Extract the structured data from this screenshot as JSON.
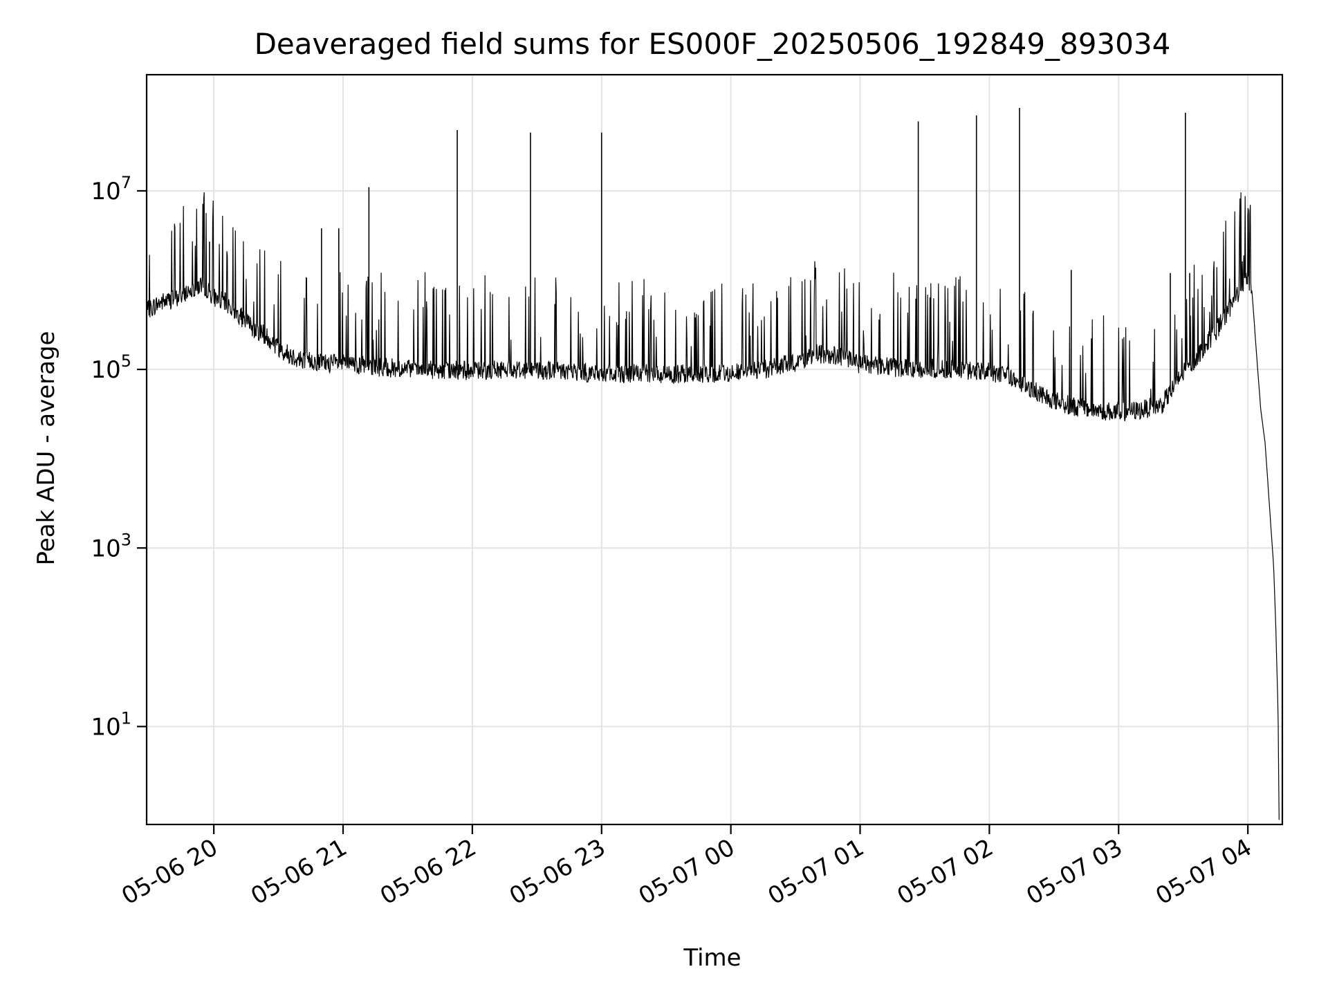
{
  "chart_data": {
    "type": "line",
    "title": "Deaveraged field sums for ES000F_20250506_192849_893034",
    "xlabel": "Time",
    "ylabel": "Peak ADU - average",
    "yscale": "log",
    "grid": true,
    "line_color": "#000000",
    "xlim": [
      "2025-05-06 19:28:49",
      "2025-05-07 04:16:00"
    ],
    "ylim": [
      0.8,
      200000000
    ],
    "x_ticks": [
      {
        "value": "2025-05-06 20:00",
        "label": "05-06 20"
      },
      {
        "value": "2025-05-06 21:00",
        "label": "05-06 21"
      },
      {
        "value": "2025-05-06 22:00",
        "label": "05-06 22"
      },
      {
        "value": "2025-05-06 23:00",
        "label": "05-06 23"
      },
      {
        "value": "2025-05-07 00:00",
        "label": "05-07 00"
      },
      {
        "value": "2025-05-07 01:00",
        "label": "05-07 01"
      },
      {
        "value": "2025-05-07 02:00",
        "label": "05-07 02"
      },
      {
        "value": "2025-05-07 03:00",
        "label": "05-07 03"
      },
      {
        "value": "2025-05-07 04:00",
        "label": "05-07 04"
      }
    ],
    "y_ticks": [
      {
        "value": 10,
        "base": "10",
        "exp": "1"
      },
      {
        "value": 1000,
        "base": "10",
        "exp": "3"
      },
      {
        "value": 100000,
        "base": "10",
        "exp": "5"
      },
      {
        "value": 10000000,
        "base": "10",
        "exp": "7"
      }
    ],
    "series": [
      {
        "points": [
          [
            "2025-05-06 19:28:49",
            450000
          ],
          [
            "2025-05-06 19:35",
            560000
          ],
          [
            "2025-05-06 19:42",
            620000
          ],
          [
            "2025-05-06 19:50",
            800000
          ],
          [
            "2025-05-06 19:55",
            900000
          ],
          [
            "2025-05-06 20:00",
            650000
          ],
          [
            "2025-05-06 20:06",
            550000
          ],
          [
            "2025-05-06 20:12",
            400000
          ],
          [
            "2025-05-06 20:18",
            300000
          ],
          [
            "2025-05-06 20:25",
            230000
          ],
          [
            "2025-05-06 20:32",
            160000
          ],
          [
            "2025-05-06 20:40",
            130000
          ],
          [
            "2025-05-06 20:50",
            120000
          ],
          [
            "2025-05-06 21:00",
            115000
          ],
          [
            "2025-05-06 21:10",
            110000
          ],
          [
            "2025-05-06 21:20",
            105000
          ],
          [
            "2025-05-06 21:30",
            100000
          ],
          [
            "2025-05-06 21:40",
            100000
          ],
          [
            "2025-05-06 21:50",
            98000
          ],
          [
            "2025-05-06 22:00",
            97000
          ],
          [
            "2025-05-06 22:15",
            100000
          ],
          [
            "2025-05-06 22:30",
            100000
          ],
          [
            "2025-05-06 22:45",
            95000
          ],
          [
            "2025-05-06 23:00",
            90000
          ],
          [
            "2025-05-06 23:15",
            90000
          ],
          [
            "2025-05-06 23:30",
            88000
          ],
          [
            "2025-05-06 23:45",
            90000
          ],
          [
            "2025-05-07 00:00",
            92000
          ],
          [
            "2025-05-07 00:15",
            100000
          ],
          [
            "2025-05-07 00:30",
            120000
          ],
          [
            "2025-05-07 00:40",
            150000
          ],
          [
            "2025-05-07 00:50",
            140000
          ],
          [
            "2025-05-07 01:00",
            115000
          ],
          [
            "2025-05-07 01:15",
            105000
          ],
          [
            "2025-05-07 01:30",
            102000
          ],
          [
            "2025-05-07 01:45",
            100000
          ],
          [
            "2025-05-07 02:00",
            95000
          ],
          [
            "2025-05-07 02:10",
            80000
          ],
          [
            "2025-05-07 02:20",
            60000
          ],
          [
            "2025-05-07 02:30",
            45000
          ],
          [
            "2025-05-07 02:40",
            38000
          ],
          [
            "2025-05-07 02:50",
            35000
          ],
          [
            "2025-05-07 03:00",
            33000
          ],
          [
            "2025-05-07 03:10",
            35000
          ],
          [
            "2025-05-07 03:20",
            40000
          ],
          [
            "2025-05-07 03:30",
            90000
          ],
          [
            "2025-05-07 03:40",
            180000
          ],
          [
            "2025-05-07 03:50",
            400000
          ],
          [
            "2025-05-07 03:55",
            700000
          ],
          [
            "2025-05-07 04:00",
            1100000
          ],
          [
            "2025-05-07 04:02",
            700000
          ],
          [
            "2025-05-07 04:04",
            150000
          ],
          [
            "2025-05-07 04:06",
            35000
          ],
          [
            "2025-05-07 04:08",
            15000
          ],
          [
            "2025-05-07 04:10",
            3000
          ],
          [
            "2025-05-07 04:12",
            600
          ],
          [
            "2025-05-07 04:13",
            120
          ],
          [
            "2025-05-07 04:14",
            15
          ],
          [
            "2025-05-07 04:14:30",
            0.9
          ]
        ]
      }
    ],
    "spikes": [
      [
        "2025-05-06 21:12",
        11000000
      ],
      [
        "2025-05-06 21:53",
        48000000
      ],
      [
        "2025-05-06 22:27",
        45000000
      ],
      [
        "2025-05-06 23:00",
        45000000
      ],
      [
        "2025-05-07 01:27",
        60000000
      ],
      [
        "2025-05-07 01:54",
        70000000
      ],
      [
        "2025-05-07 02:14",
        85000000
      ],
      [
        "2025-05-07 03:31",
        75000000
      ],
      [
        "2025-05-07 04:00",
        5500000
      ],
      [
        "2025-05-06 19:58",
        2700000
      ],
      [
        "2025-05-06 20:50",
        3800000
      ],
      [
        "2025-05-06 20:58",
        3800000
      ],
      [
        "2025-05-07 02:38",
        1300000
      ],
      [
        "2025-05-07 03:24",
        1200000
      ],
      [
        "2025-05-07 03:33",
        1200000
      ]
    ]
  }
}
